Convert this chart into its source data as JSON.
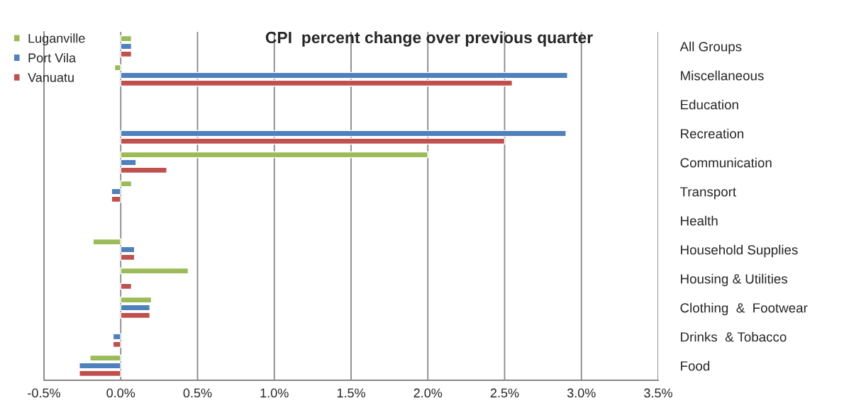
{
  "chart_data": {
    "type": "bar",
    "orientation": "horizontal",
    "title": "CPI  percent change over previous quarter",
    "categories": [
      "All Groups",
      "Miscellaneous",
      "Education",
      "Recreation",
      "Communication",
      "Transport",
      "Health",
      "Household Supplies",
      "Housing & Utilities",
      "Clothing  &  Footwear",
      "Drinks  & Tobacco",
      "Food"
    ],
    "series": [
      {
        "name": "Luganville",
        "color": "#9bbb59",
        "values": [
          0.07,
          -0.04,
          null,
          null,
          2.0,
          0.07,
          null,
          -0.18,
          0.44,
          0.2,
          null,
          -0.2
        ]
      },
      {
        "name": "Port Vila",
        "color": "#4f81bd",
        "values": [
          0.07,
          2.91,
          null,
          2.9,
          0.1,
          -0.06,
          null,
          0.09,
          null,
          0.19,
          -0.05,
          -0.27
        ]
      },
      {
        "name": "Vanuatu",
        "color": "#c0504d",
        "values": [
          0.07,
          2.55,
          null,
          2.5,
          0.3,
          -0.06,
          null,
          0.09,
          0.07,
          0.19,
          -0.05,
          -0.27
        ]
      }
    ],
    "xlim": [
      -0.5,
      3.5
    ],
    "xticks": [
      {
        "value": -0.5,
        "label": "-0.5%"
      },
      {
        "value": 0,
        "label": "0.0%"
      },
      {
        "value": 0.5,
        "label": "0.5%"
      },
      {
        "value": 1,
        "label": "1.0%"
      },
      {
        "value": 1.5,
        "label": "1.5%"
      },
      {
        "value": 2,
        "label": "2.0%"
      },
      {
        "value": 2.5,
        "label": "2.5%"
      },
      {
        "value": 3,
        "label": "3.0%"
      },
      {
        "value": 3.5,
        "label": "3.5%"
      }
    ],
    "grid": "x",
    "legend": "top left"
  }
}
